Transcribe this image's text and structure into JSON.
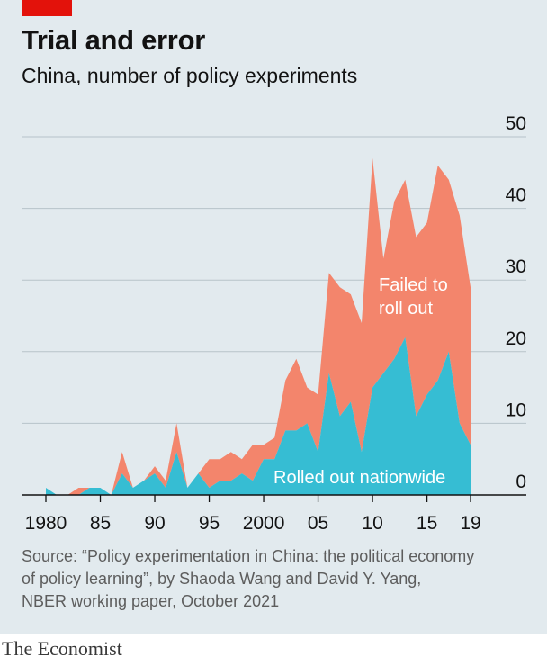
{
  "header": {
    "title": "Trial and error",
    "subtitle": "China, number of policy experiments"
  },
  "source": {
    "lines": [
      "Source: “Policy experimentation in China: the political economy",
      "of policy learning”, by Shaoda Wang and David Y. Yang,",
      "NBER working paper, October 2021"
    ]
  },
  "brand": "The Economist",
  "colors": {
    "background": "#e2eaee",
    "accent": "#e3120b",
    "rolled_out": "#36bdd3",
    "failed": "#f3856c"
  },
  "chart_data": {
    "type": "area",
    "stacked": true,
    "x": [
      1980,
      1981,
      1982,
      1983,
      1984,
      1985,
      1986,
      1987,
      1988,
      1989,
      1990,
      1991,
      1992,
      1993,
      1994,
      1995,
      1996,
      1997,
      1998,
      1999,
      2000,
      2001,
      2002,
      2003,
      2004,
      2005,
      2006,
      2007,
      2008,
      2009,
      2010,
      2011,
      2012,
      2013,
      2014,
      2015,
      2016,
      2017,
      2018,
      2019
    ],
    "series": [
      {
        "name": "Rolled out nationwide",
        "values": [
          1,
          0,
          0,
          0,
          1,
          1,
          0,
          3,
          1,
          2,
          3,
          1,
          6,
          1,
          3,
          1,
          2,
          2,
          3,
          2,
          5,
          5,
          9,
          9,
          10,
          6,
          17,
          11,
          13,
          6,
          15,
          17,
          19,
          22,
          11,
          14,
          16,
          20,
          10,
          7
        ]
      },
      {
        "name": "Failed to roll out",
        "values": [
          0,
          0,
          0,
          1,
          0,
          0,
          0,
          3,
          0,
          0,
          1,
          1,
          4,
          0,
          0,
          4,
          3,
          4,
          2,
          5,
          2,
          3,
          7,
          10,
          5,
          8,
          14,
          18,
          15,
          18,
          32,
          16,
          22,
          22,
          25,
          24,
          30,
          24,
          29,
          22
        ]
      }
    ],
    "ylim": [
      0,
      50
    ],
    "y_ticks": [
      0,
      10,
      20,
      30,
      40,
      50
    ],
    "x_tick_labels": [
      {
        "year": 1980,
        "label": "1980"
      },
      {
        "year": 1985,
        "label": "85"
      },
      {
        "year": 1990,
        "label": "90"
      },
      {
        "year": 1995,
        "label": "95"
      },
      {
        "year": 2000,
        "label": "2000"
      },
      {
        "year": 2005,
        "label": "05"
      },
      {
        "year": 2010,
        "label": "10"
      },
      {
        "year": 2015,
        "label": "15"
      },
      {
        "year": 2019,
        "label": "19"
      }
    ],
    "annotations": [
      {
        "series": "Failed to roll out",
        "lines": [
          "Failed to",
          "roll out"
        ]
      },
      {
        "series": "Rolled out nationwide",
        "lines": [
          "Rolled out nationwide"
        ]
      }
    ],
    "y_axis_position": "right",
    "grid": true
  }
}
